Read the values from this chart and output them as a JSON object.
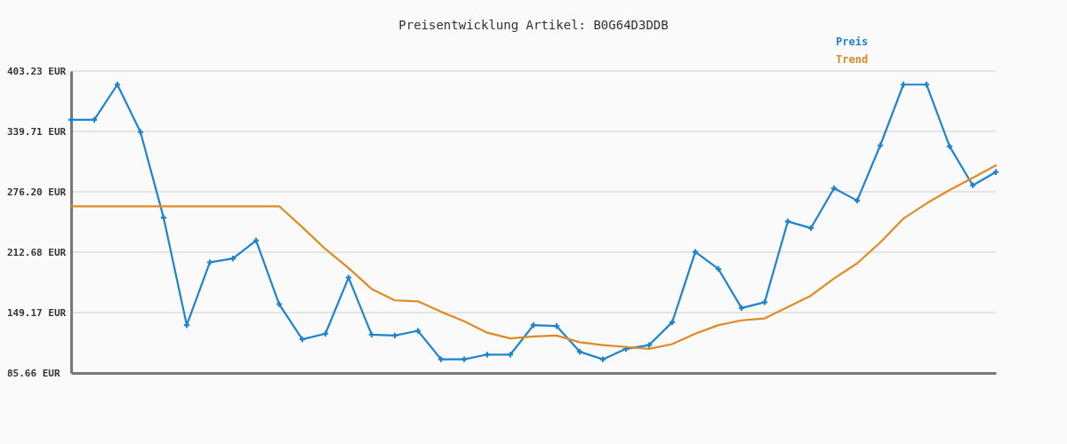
{
  "chart_data": {
    "type": "line",
    "title": "Preisentwicklung Artikel: B0G64D3DDB",
    "categories": [
      null,
      null,
      null,
      null,
      null,
      null,
      null,
      null,
      null,
      null,
      null,
      null,
      null,
      null,
      null,
      null,
      null,
      null,
      null,
      null,
      null,
      null,
      null,
      null,
      null,
      null,
      null,
      null,
      null,
      null,
      null,
      null,
      null,
      null,
      null,
      null,
      null,
      null,
      null,
      null,
      null
    ],
    "series": [
      {
        "name": "Preis",
        "color": "#1f84d0",
        "marker": "cross",
        "values": [
          352,
          352,
          389,
          339,
          249,
          136,
          202,
          206,
          225,
          158,
          121,
          127,
          186,
          126,
          125,
          130,
          100,
          100,
          105,
          105,
          136,
          135,
          108,
          100,
          111,
          115,
          139,
          213,
          195,
          154,
          160,
          245,
          238,
          280,
          267,
          325,
          389,
          389,
          324,
          283,
          297
        ]
      },
      {
        "name": "Trend",
        "color": "#e08a25",
        "marker": "none",
        "values": [
          261,
          261,
          261,
          261,
          261,
          261,
          261,
          261,
          261,
          261,
          239,
          216,
          196,
          174,
          162,
          161,
          150,
          140,
          128,
          122,
          124,
          125,
          118,
          115,
          113,
          111,
          116,
          127,
          136,
          141,
          143,
          155,
          167,
          185,
          201,
          223,
          248,
          264,
          278,
          291,
          304
        ]
      }
    ],
    "ylim": [
      85.66,
      403.23
    ],
    "yticks": [
      {
        "value": 85.66,
        "label": "85.66 EUR"
      },
      {
        "value": 149.17,
        "label": "149.17 EUR"
      },
      {
        "value": 212.68,
        "label": "212.68 EUR"
      },
      {
        "value": 276.2,
        "label": "276.20 EUR"
      },
      {
        "value": 339.71,
        "label": "339.71 EUR"
      },
      {
        "value": 403.23,
        "label": "403.23 EUR"
      }
    ],
    "grid": "y",
    "legend": "top right",
    "tick_labels": "y"
  }
}
